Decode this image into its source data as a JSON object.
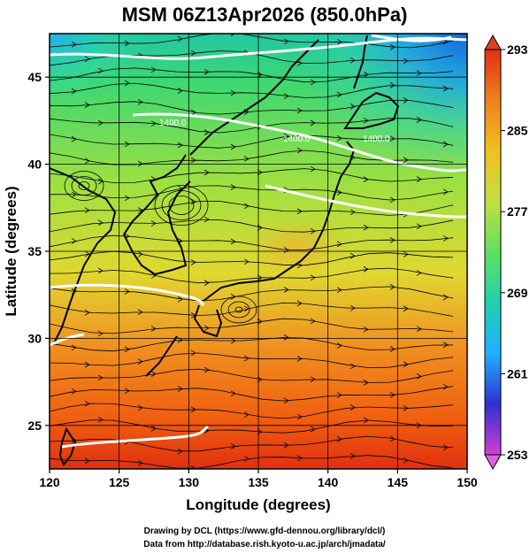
{
  "chart_data": {
    "type": "heatmap",
    "title": "MSM 06Z13Apr2026 (850.0hPa)",
    "xlabel": "Longitude (degrees)",
    "ylabel": "Latitude  (degrees)",
    "xlim": [
      120,
      150
    ],
    "ylim": [
      22.5,
      47.5
    ],
    "x_ticks": [
      120,
      125,
      130,
      135,
      140,
      145,
      150
    ],
    "y_ticks": [
      25,
      30,
      35,
      40,
      45
    ],
    "grid": true,
    "colorbar": {
      "position": "right",
      "ticks": [
        293,
        285,
        277,
        269,
        261,
        253
      ],
      "range": [
        253,
        293
      ],
      "colors": [
        "#d040d0",
        "#3030d0",
        "#20b0ff",
        "#20d0b0",
        "#60e060",
        "#c0e040",
        "#f0c020",
        "#f08020",
        "#e03010"
      ]
    },
    "temperature_field_approx": {
      "description_units": "K",
      "northeast_cold_value": 265,
      "north_central_value": 275,
      "mid_latitude_value": 281,
      "south_warm_value": 290
    },
    "contour_labels": [
      "1400.0",
      "1400.0",
      "1400.0"
    ],
    "overlays": [
      "streamlines",
      "coastlines",
      "height-contours"
    ]
  },
  "credits": {
    "line1": "Drawing by DCL (https://www.gfd-dennou.org/library/dcl/)",
    "line2": "Data from http://database.rish.kyoto-u.ac.jp/arch/jmadata/"
  }
}
